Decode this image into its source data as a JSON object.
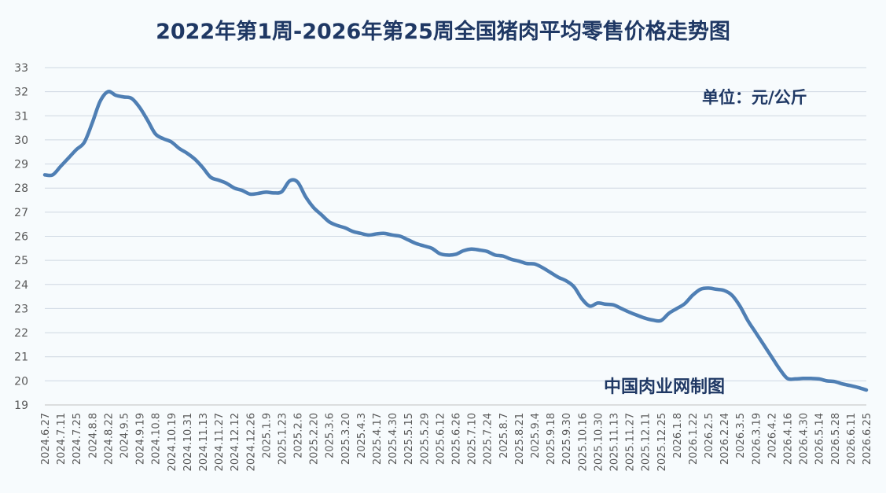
{
  "chart_data": {
    "type": "line",
    "title": "2022年第1周-2026年第25周全国猪肉平均零售价格走势图",
    "unit_label": "单位：元/公斤",
    "credit": "中国肉业网制图",
    "ylim": [
      19,
      33
    ],
    "yticks": [
      "19",
      "20",
      "21",
      "22",
      "23",
      "24",
      "25",
      "26",
      "27",
      "28",
      "29",
      "30",
      "31",
      "32",
      "33"
    ],
    "grid": true,
    "x": [
      "2024.6.27",
      "2024.7.4",
      "2024.7.11",
      "2024.7.18",
      "2024.7.25",
      "2024.8.1",
      "2024.8.8",
      "2024.8.15",
      "2024.8.22",
      "2024.8.29",
      "2024.9.5",
      "2024.9.12",
      "2024.9.19",
      "2024.9.26",
      "2024.10.8",
      "2024.10.12",
      "2024.10.19",
      "2024.10.24",
      "2024.10.31",
      "2024.11.7",
      "2024.11.13",
      "2024.11.20",
      "2024.11.27",
      "2024.12.5",
      "2024.12.12",
      "2024.12.19",
      "2024.12.26",
      "2025.1.2",
      "2025.1.9",
      "2025.1.16",
      "2025.1.23",
      "2025.1.30",
      "2025.2.6",
      "2025.2.13",
      "2025.2.20",
      "2025.2.27",
      "2025.3.6",
      "2025.3.13",
      "2025.3.20",
      "2025.3.27",
      "2025.4.3",
      "2025.4.10",
      "2025.4.17",
      "2025.4.24",
      "2025.4.30",
      "2025.5.8",
      "2025.5.15",
      "2025.5.22",
      "2025.5.29",
      "2025.6.5",
      "2025.6.12",
      "2025.6.19",
      "2025.6.26",
      "2025.7.3",
      "2025.7.10",
      "2025.7.17",
      "2025.7.24",
      "2025.7.31",
      "2025.8.7",
      "2025.8.14",
      "2025.8.21",
      "2025.8.28",
      "2025.9.4",
      "2025.9.11",
      "2025.9.18",
      "2025.9.25",
      "2025.9.30",
      "2025.10.9",
      "2025.10.16",
      "2025.10.23",
      "2025.10.30",
      "2025.11.6",
      "2025.11.13",
      "2025.11.20",
      "2025.11.27",
      "2025.12.4",
      "2025.12.11",
      "2025.12.18",
      "2025.12.25",
      "2026.1.1",
      "2026.1.8",
      "2026.1.15",
      "2026.1.22",
      "2026.1.29",
      "2026.2.5",
      "2026.2.12",
      "2026.2.24",
      "2026.2.26",
      "2026.3.5",
      "2026.3.12",
      "2026.3.19",
      "2026.3.26",
      "2026.4.2",
      "2026.4.9",
      "2026.4.16",
      "2026.4.23",
      "2026.4.30",
      "2026.5.7",
      "2026.5.14",
      "2026.5.21",
      "2026.5.28",
      "2026.6.4",
      "2026.6.11",
      "2026.6.18",
      "2026.6.25"
    ],
    "x_tick_labels": [
      "2024.6.27",
      "2024.7.11",
      "2024.7.25",
      "2024.8.8",
      "2024.8.22",
      "2024.9.5",
      "2024.9.19",
      "2024.10.8",
      "2024.10.19",
      "2024.10.31",
      "2024.11.13",
      "2024.11.27",
      "2024.12.12",
      "2024.12.26",
      "2025.1.9",
      "2025.1.23",
      "2025.2.6",
      "2025.2.20",
      "2025.3.6",
      "2025.3.20",
      "2025.4.3",
      "2025.4.17",
      "2025.4.30",
      "2025.5.15",
      "2025.5.29",
      "2025.6.12",
      "2025.6.26",
      "2025.7.10",
      "2025.7.24",
      "2025.8.7",
      "2025.8.21",
      "2025.9.4",
      "2025.9.18",
      "2025.9.30",
      "2025.10.16",
      "2025.10.30",
      "2025.11.13",
      "2025.11.27",
      "2025.12.11",
      "2025.12.25",
      "2026.1.8",
      "2026.1.22",
      "2026.2.5",
      "2026.2.24",
      "2026.3.5",
      "2026.3.19",
      "2026.4.2",
      "2026.4.16",
      "2026.4.30",
      "2026.5.14",
      "2026.5.28",
      "2026.6.11",
      "2026.6.25"
    ],
    "series": [
      {
        "color": "#4f7fb4",
        "values": [
          28.55,
          28.55,
          28.9,
          29.25,
          29.6,
          29.9,
          30.7,
          31.6,
          32.0,
          31.85,
          31.78,
          31.72,
          31.35,
          30.82,
          30.25,
          30.05,
          29.92,
          29.65,
          29.45,
          29.2,
          28.85,
          28.45,
          28.33,
          28.2,
          28.0,
          27.9,
          27.75,
          27.78,
          27.83,
          27.8,
          27.85,
          28.3,
          28.25,
          27.65,
          27.2,
          26.9,
          26.6,
          26.45,
          26.35,
          26.2,
          26.12,
          26.05,
          26.1,
          26.12,
          26.05,
          26.0,
          25.85,
          25.7,
          25.6,
          25.5,
          25.28,
          25.22,
          25.25,
          25.4,
          25.47,
          25.43,
          25.37,
          25.22,
          25.18,
          25.05,
          24.97,
          24.87,
          24.85,
          24.7,
          24.5,
          24.3,
          24.15,
          23.9,
          23.4,
          23.1,
          23.23,
          23.18,
          23.15,
          23.0,
          22.85,
          22.72,
          22.6,
          22.52,
          22.5,
          22.8,
          23.0,
          23.2,
          23.55,
          23.8,
          23.85,
          23.8,
          23.75,
          23.55,
          23.1,
          22.5,
          22.0,
          21.5,
          21.0,
          20.5,
          20.1,
          20.08,
          20.1,
          20.1,
          20.08,
          20.0,
          19.97,
          19.87,
          19.8,
          19.72,
          19.62
        ]
      }
    ]
  }
}
